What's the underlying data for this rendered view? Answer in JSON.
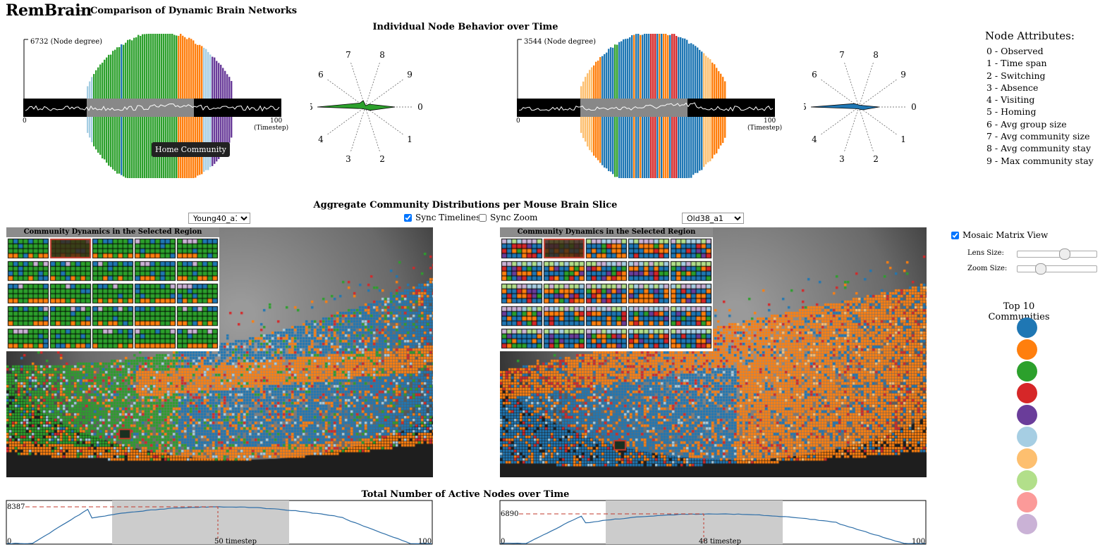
{
  "app": {
    "title": "RemBrain",
    "separator": "–",
    "subtitle": "Comparison of Dynamic Brain Networks"
  },
  "node_behavior": {
    "title": "Individual Node Behavior over Time",
    "left": {
      "max_label": "6732 (Node degree)",
      "x_start": "0",
      "x_end": "100",
      "x_unit": "(Timestep)",
      "tooltip": "Home Community",
      "radar_color": "#2ca02c"
    },
    "right": {
      "max_label": "3544 (Node degree)",
      "x_start": "0",
      "x_end": "100",
      "x_unit": "(Timestep)",
      "radar_color": "#1f77b4"
    },
    "radar_axes": [
      "0",
      "1",
      "2",
      "3",
      "4",
      "5",
      "6",
      "7",
      "8",
      "9"
    ]
  },
  "node_attributes": {
    "title": "Node Attributes:",
    "items": [
      "0 - Observed",
      "1 - Time span",
      "2 - Switching",
      "3 - Absence",
      "4 - Visiting",
      "5 - Homing",
      "6 - Avg group size",
      "7 - Avg community size",
      "8 - Avg community stay",
      "9 - Max community stay"
    ]
  },
  "aggregate": {
    "title": "Aggregate Community Distributions per Mouse Brain Slice",
    "left_select": "Young40_a1",
    "right_select": "Old38_a1",
    "sync_timelines": "Sync Timelines",
    "sync_zoom": "Sync Zoom",
    "mosaic_title": "Community Dynamics in the Selected Region"
  },
  "controls": {
    "mosaic_view": "Mosaic Matrix View",
    "lens_size": "Lens Size:",
    "zoom_size": "Zoom Size:",
    "lens_value": 0.6,
    "zoom_value": 0.25
  },
  "top_communities": {
    "title": "Top 10 Communities",
    "colors": [
      "#1f77b4",
      "#ff7f0e",
      "#2ca02c",
      "#d62728",
      "#6a3d9a",
      "#a6cee3",
      "#fdbf6f",
      "#b2df8a",
      "#fb9a99",
      "#cab2d6"
    ]
  },
  "active_nodes": {
    "title": "Total Number of Active Nodes over Time",
    "left": {
      "peak_label": "8387",
      "x_start": "0",
      "x_end": "100",
      "marker_label": "50 timestep"
    },
    "right": {
      "peak_label": "6890",
      "x_start": "0",
      "x_end": "100",
      "marker_label": "48 timestep"
    }
  }
}
